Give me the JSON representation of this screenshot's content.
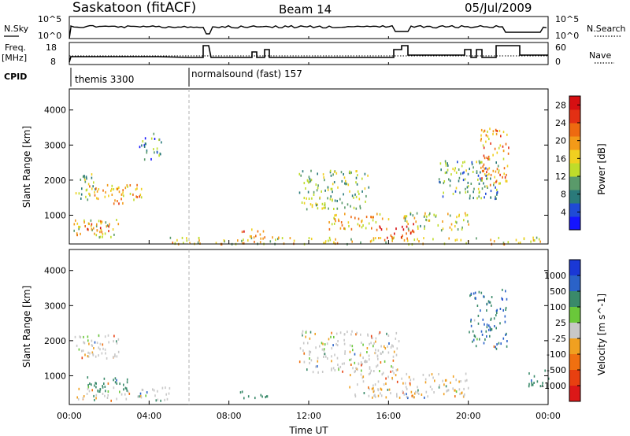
{
  "header": {
    "title": "Saskatoon (fitACF)",
    "beam": "Beam 14",
    "date": "05/Jul/2009"
  },
  "sky_panel": {
    "left_label": "N.Sky",
    "left_ticks": [
      "10^5",
      "10^0"
    ],
    "right_ticks": [
      "10^5",
      "10^0"
    ],
    "right_label": "N.Search"
  },
  "freq_panel": {
    "left_label_1": "Freq.",
    "left_label_2": "[MHz]",
    "left_ticks": [
      "18",
      "8"
    ],
    "right_ticks": [
      "60",
      "0"
    ],
    "right_label": "Nave"
  },
  "cpid": {
    "label": "CPID",
    "segments": [
      {
        "name": "themis 3300",
        "start_hour": 0.0
      },
      {
        "name": "normalsound (fast) 157",
        "start_hour": 6.0
      }
    ]
  },
  "time_axis": {
    "label": "Time UT",
    "ticks": [
      "00:00",
      "04:00",
      "08:00",
      "12:00",
      "16:00",
      "20:00",
      "00:00"
    ]
  },
  "chart_data": [
    {
      "type": "heatmap",
      "quantity": "Power",
      "x": "Time UT (hours)",
      "xlim": [
        0,
        24
      ],
      "ylabel": "Slant Range [km]",
      "ylim": [
        180,
        4600
      ],
      "yticks": [
        "1000",
        "2000",
        "3000",
        "4000"
      ],
      "colorbar_label": "Power [dB]",
      "colorbar_ticks": [
        "4",
        "8",
        "12",
        "16",
        "20",
        "24",
        "28"
      ],
      "colorbar_range": [
        0,
        30
      ],
      "colorbar_colors": [
        "#1414ff",
        "#1f4ad6",
        "#2a7a7a",
        "#5a9a6a",
        "#bfdc2a",
        "#f0d020",
        "#f39a18",
        "#ee6a10",
        "#e33014",
        "#d60f12"
      ],
      "regions": [
        {
          "t": [
            0.3,
            1.3
          ],
          "r": [
            1400,
            2200
          ],
          "dB": 12
        },
        {
          "t": [
            0.8,
            2.8
          ],
          "r": [
            1500,
            1900
          ],
          "dB": 18
        },
        {
          "t": [
            2.2,
            3.6
          ],
          "r": [
            1300,
            1900
          ],
          "dB": 20
        },
        {
          "t": [
            0.2,
            2.6
          ],
          "r": [
            400,
            900
          ],
          "dB": 16
        },
        {
          "t": [
            0.6,
            2.0
          ],
          "r": [
            550,
            800
          ],
          "dB": 22
        },
        {
          "t": [
            3.5,
            4.6
          ],
          "r": [
            2600,
            3400
          ],
          "dB": 8
        },
        {
          "t": [
            5.0,
            24.0
          ],
          "r": [
            200,
            400
          ],
          "dB": 16
        },
        {
          "t": [
            8.5,
            10.0
          ],
          "r": [
            400,
            650
          ],
          "dB": 22
        },
        {
          "t": [
            11.5,
            15.0
          ],
          "r": [
            1200,
            2300
          ],
          "dB": 12
        },
        {
          "t": [
            13.0,
            16.0
          ],
          "r": [
            600,
            1100
          ],
          "dB": 18
        },
        {
          "t": [
            15.5,
            17.3
          ],
          "r": [
            350,
            800
          ],
          "dB": 26
        },
        {
          "t": [
            16.5,
            20.0
          ],
          "r": [
            600,
            1100
          ],
          "dB": 14
        },
        {
          "t": [
            18.5,
            21.5
          ],
          "r": [
            1500,
            2600
          ],
          "dB": 10
        },
        {
          "t": [
            20.5,
            22.0
          ],
          "r": [
            1800,
            3500
          ],
          "dB": 20
        }
      ]
    },
    {
      "type": "heatmap",
      "quantity": "Velocity",
      "x": "Time UT (hours)",
      "xlim": [
        0,
        24
      ],
      "ylabel": "Slant Range [km]",
      "ylim": [
        180,
        4600
      ],
      "yticks": [
        "1000",
        "2000",
        "3000",
        "4000"
      ],
      "colorbar_label": "Velocity [m s^-1]",
      "colorbar_ticks": [
        "1000",
        "500",
        "100",
        "25",
        "-25",
        "-100",
        "-500",
        "-1000"
      ],
      "colorbar_colors": [
        "#1a38d6",
        "#2a62c8",
        "#3a8a6a",
        "#6ac83a",
        "#c8c8c8",
        "#f0a020",
        "#f07010",
        "#e84010",
        "#dc1818"
      ],
      "regions": [
        {
          "t": [
            0.2,
            2.6
          ],
          "r": [
            1500,
            2200
          ],
          "v": 0
        },
        {
          "t": [
            0.5,
            3.0
          ],
          "r": [
            550,
            1000
          ],
          "v": 150
        },
        {
          "t": [
            1.0,
            2.0
          ],
          "r": [
            650,
            850
          ],
          "v": 120
        },
        {
          "t": [
            0.3,
            5.0
          ],
          "r": [
            300,
            700
          ],
          "v": 0
        },
        {
          "t": [
            8.5,
            10.0
          ],
          "r": [
            380,
            620
          ],
          "v": 120
        },
        {
          "t": [
            11.5,
            16.5
          ],
          "r": [
            1100,
            2300
          ],
          "v": 0
        },
        {
          "t": [
            14.0,
            20.0
          ],
          "r": [
            400,
            1100
          ],
          "v": -20
        },
        {
          "t": [
            20.0,
            22.0
          ],
          "r": [
            1800,
            3500
          ],
          "v": 300
        },
        {
          "t": [
            23.0,
            24.0
          ],
          "r": [
            700,
            1200
          ],
          "v": 150
        }
      ]
    }
  ]
}
